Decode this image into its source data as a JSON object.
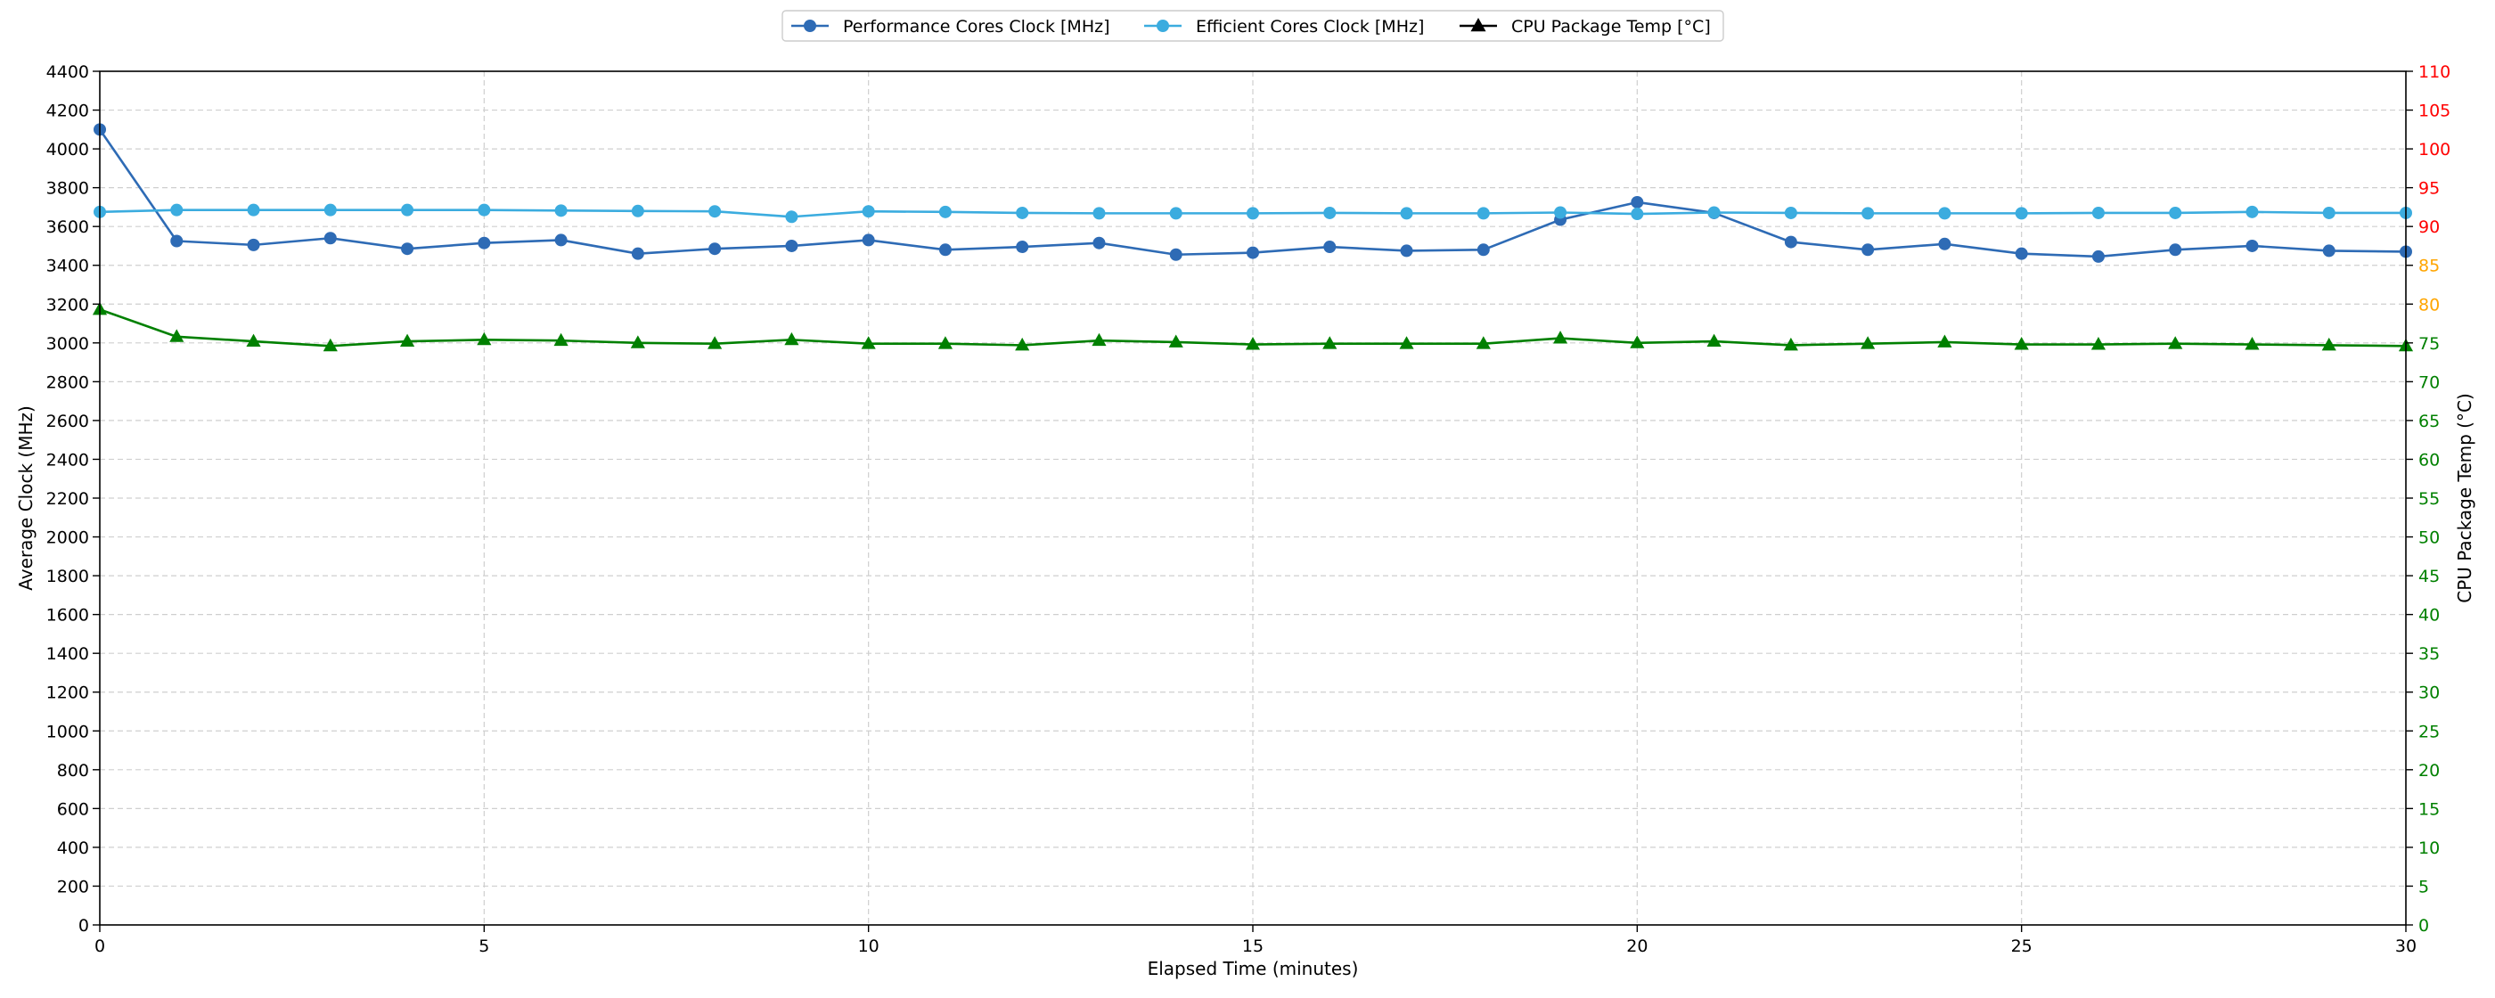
{
  "chart_data": {
    "type": "line",
    "title": "",
    "xlabel": "Elapsed Time (minutes)",
    "ylabel_left": "Average Clock (MHz)",
    "ylabel_right": "CPU Package Temp (°C)",
    "xlim": [
      0,
      30
    ],
    "ylim_left": [
      0,
      4400
    ],
    "ylim_right": [
      0,
      110
    ],
    "x_ticks": [
      0,
      5,
      10,
      15,
      20,
      25,
      30
    ],
    "y_left_ticks": [
      0,
      200,
      400,
      600,
      800,
      1000,
      1200,
      1400,
      1600,
      1800,
      2000,
      2200,
      2400,
      2600,
      2800,
      3000,
      3200,
      3400,
      3600,
      3800,
      4000,
      4200,
      4400
    ],
    "y_right_ticks": [
      {
        "value": 0,
        "color": "#008000"
      },
      {
        "value": 5,
        "color": "#008000"
      },
      {
        "value": 10,
        "color": "#008000"
      },
      {
        "value": 15,
        "color": "#008000"
      },
      {
        "value": 20,
        "color": "#008000"
      },
      {
        "value": 25,
        "color": "#008000"
      },
      {
        "value": 30,
        "color": "#008000"
      },
      {
        "value": 35,
        "color": "#008000"
      },
      {
        "value": 40,
        "color": "#008000"
      },
      {
        "value": 45,
        "color": "#008000"
      },
      {
        "value": 50,
        "color": "#008000"
      },
      {
        "value": 55,
        "color": "#008000"
      },
      {
        "value": 60,
        "color": "#008000"
      },
      {
        "value": 65,
        "color": "#008000"
      },
      {
        "value": 70,
        "color": "#008000"
      },
      {
        "value": 75,
        "color": "#008000"
      },
      {
        "value": 80,
        "color": "#ffa500"
      },
      {
        "value": 85,
        "color": "#ffa500"
      },
      {
        "value": 90,
        "color": "#ff0000"
      },
      {
        "value": 95,
        "color": "#ff0000"
      },
      {
        "value": 100,
        "color": "#ff0000"
      },
      {
        "value": 105,
        "color": "#ff0000"
      },
      {
        "value": 110,
        "color": "#ff0000"
      }
    ],
    "grid": true,
    "legend_position": "top-center",
    "x": [
      0,
      1,
      2,
      3,
      4,
      5,
      6,
      7,
      8,
      9,
      10,
      11,
      12,
      13,
      14,
      15,
      16,
      17,
      18,
      19,
      20,
      21,
      22,
      23,
      24,
      25,
      26,
      27,
      28,
      29,
      30
    ],
    "series": [
      {
        "name": "Performance Cores Clock [MHz]",
        "axis": "left",
        "color": "#2e6bb5",
        "marker": "circle",
        "values": [
          4100,
          3525,
          3505,
          3540,
          3485,
          3515,
          3530,
          3460,
          3485,
          3500,
          3530,
          3480,
          3495,
          3515,
          3455,
          3465,
          3495,
          3475,
          3480,
          3635,
          3725,
          3670,
          3520,
          3480,
          3510,
          3460,
          3445,
          3480,
          3500,
          3475,
          3470
        ]
      },
      {
        "name": "Efficient Cores Clock [MHz]",
        "axis": "left",
        "color": "#3bacdf",
        "marker": "circle",
        "values": [
          3675,
          3685,
          3685,
          3685,
          3685,
          3685,
          3682,
          3680,
          3678,
          3650,
          3678,
          3675,
          3670,
          3668,
          3668,
          3668,
          3670,
          3668,
          3668,
          3672,
          3665,
          3672,
          3670,
          3668,
          3668,
          3668,
          3670,
          3670,
          3675,
          3670,
          3670
        ]
      },
      {
        "name": "CPU Package Temp [°C]",
        "axis": "right",
        "color": "#008000",
        "legend_color": "#000000",
        "marker": "triangle",
        "values": [
          79.3,
          75.8,
          75.2,
          74.6,
          75.2,
          75.4,
          75.3,
          75.0,
          74.9,
          75.4,
          74.9,
          74.9,
          74.7,
          75.3,
          75.1,
          74.8,
          74.9,
          74.9,
          74.9,
          75.6,
          75.0,
          75.2,
          74.7,
          74.9,
          75.1,
          74.8,
          74.8,
          74.9,
          74.8,
          74.7,
          74.6
        ]
      }
    ]
  }
}
